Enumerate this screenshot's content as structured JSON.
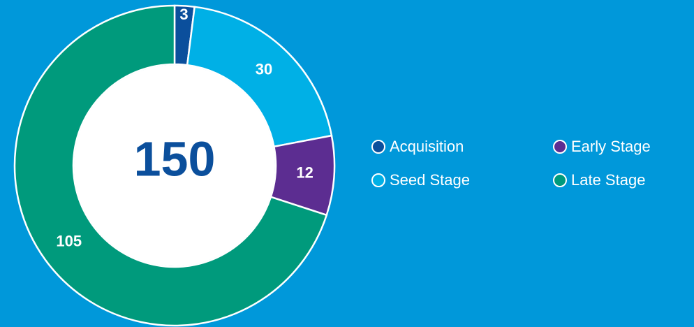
{
  "chart_data": {
    "type": "donut",
    "categories": [
      "Acquisition",
      "Seed Stage",
      "Early Stage",
      "Late Stage"
    ],
    "values": [
      3,
      30,
      12,
      105
    ],
    "colors": [
      "#0b4f9c",
      "#00b0e6",
      "#5c2d91",
      "#009a7c"
    ],
    "total": 150,
    "legend": "right"
  }
}
